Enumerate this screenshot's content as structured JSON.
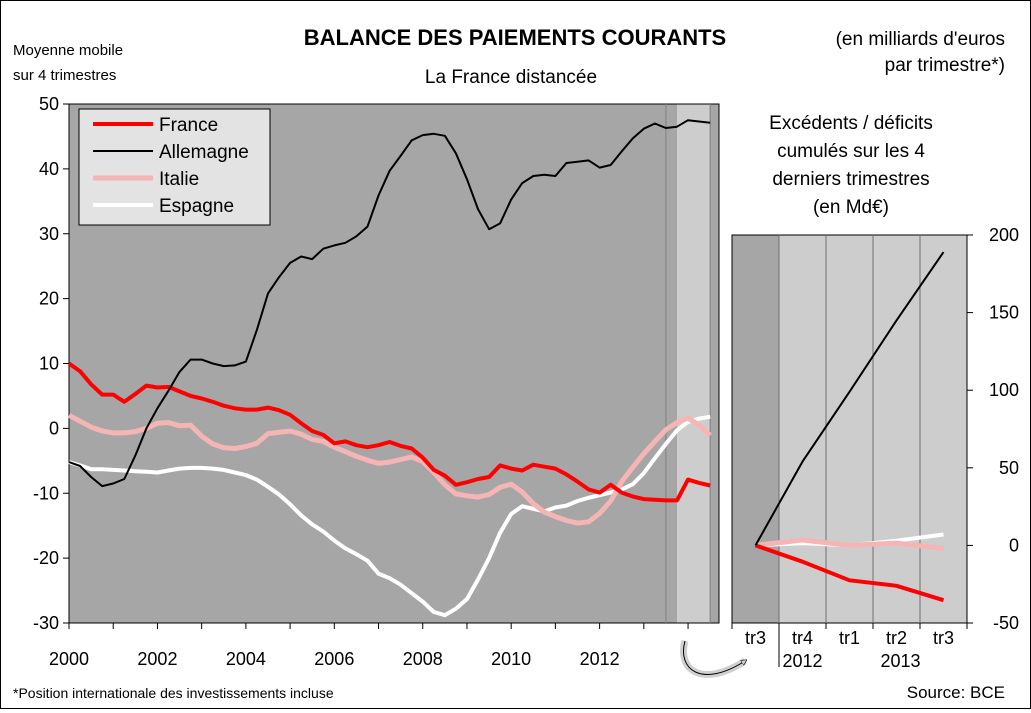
{
  "title": "BALANCE DES PAIEMENTS COURANTS",
  "subtitle": "La France distancée",
  "unit_note": [
    "(en milliards d'euros",
    "par trimestre*)"
  ],
  "left_axis_note": [
    "Moyenne mobile",
    "sur 4 trimestres"
  ],
  "footnote": "*Position internationale des investissements incluse",
  "source": "Source: BCE",
  "colors": {
    "plot_bg": "#a6a6a6",
    "highlight_bg": "#cdcdcd",
    "France": "#ff0000",
    "Allemagne": "#000000",
    "Italie": "#f5b5b5",
    "Espagne": "#ffffff"
  },
  "chart_data": [
    {
      "type": "line",
      "title": "",
      "ylabel": "Moyenne mobile sur 4 trimestres",
      "xlim": [
        2000,
        2014.7
      ],
      "ylim": [
        -30,
        50
      ],
      "yticks": [
        -30,
        -20,
        -10,
        0,
        10,
        20,
        30,
        40,
        50
      ],
      "xticks": [
        2000,
        2002,
        2004,
        2006,
        2008,
        2010,
        2012
      ],
      "grid": false,
      "legend": "top-left",
      "highlight_range": [
        2013.75,
        2014.5
      ],
      "series": [
        {
          "name": "France",
          "x": [
            2000.0,
            2000.25,
            2000.5,
            2000.75,
            2001.0,
            2001.25,
            2001.5,
            2001.75,
            2002.0,
            2002.25,
            2002.5,
            2002.75,
            2003.0,
            2003.25,
            2003.5,
            2003.75,
            2004.0,
            2004.25,
            2004.5,
            2004.75,
            2005.0,
            2005.25,
            2005.5,
            2005.75,
            2006.0,
            2006.25,
            2006.5,
            2006.75,
            2007.0,
            2007.25,
            2007.5,
            2007.75,
            2008.0,
            2008.25,
            2008.5,
            2008.75,
            2009.0,
            2009.25,
            2009.5,
            2009.75,
            2010.0,
            2010.25,
            2010.5,
            2010.75,
            2011.0,
            2011.25,
            2011.5,
            2011.75,
            2012.0,
            2012.25,
            2012.5,
            2012.75,
            2013.0,
            2013.25,
            2013.5,
            2013.75,
            2014.0,
            2014.25,
            2014.5
          ],
          "values": [
            10,
            8.8,
            6.8,
            5.2,
            5.2,
            4.1,
            5.3,
            6.6,
            6.3,
            6.4,
            5.7,
            5.0,
            4.6,
            4.1,
            3.5,
            3.1,
            2.9,
            2.9,
            3.2,
            2.8,
            2.1,
            0.8,
            -0.4,
            -1.0,
            -2.3,
            -2.0,
            -2.6,
            -2.9,
            -2.6,
            -2.1,
            -2.7,
            -3.1,
            -4.5,
            -6.4,
            -7.3,
            -8.7,
            -8.3,
            -7.8,
            -7.5,
            -5.7,
            -6.2,
            -6.5,
            -5.6,
            -5.9,
            -6.2,
            -7.1,
            -8.2,
            -9.4,
            -9.9,
            -8.7,
            -9.9,
            -10.5,
            -10.9,
            -11.0,
            -11.1,
            -11.1,
            -7.9,
            -8.4,
            -8.8
          ]
        },
        {
          "name": "Allemagne",
          "x": [
            2000.0,
            2000.25,
            2000.5,
            2000.75,
            2001.0,
            2001.25,
            2001.5,
            2001.75,
            2002.0,
            2002.25,
            2002.5,
            2002.75,
            2003.0,
            2003.25,
            2003.5,
            2003.75,
            2004.0,
            2004.25,
            2004.5,
            2004.75,
            2005.0,
            2005.25,
            2005.5,
            2005.75,
            2006.0,
            2006.25,
            2006.5,
            2006.75,
            2007.0,
            2007.25,
            2007.5,
            2007.75,
            2008.0,
            2008.25,
            2008.5,
            2008.75,
            2009.0,
            2009.25,
            2009.5,
            2009.75,
            2010.0,
            2010.25,
            2010.5,
            2010.75,
            2011.0,
            2011.25,
            2011.5,
            2011.75,
            2012.0,
            2012.25,
            2012.5,
            2012.75,
            2013.0,
            2013.25,
            2013.5,
            2013.75,
            2014.0,
            2014.25,
            2014.5
          ],
          "values": [
            -5.2,
            -5.8,
            -7.5,
            -8.9,
            -8.5,
            -7.8,
            -4.2,
            0.0,
            3.1,
            5.8,
            8.7,
            10.6,
            10.6,
            10.0,
            9.6,
            9.7,
            10.3,
            15.2,
            20.8,
            23.3,
            25.5,
            26.5,
            26.1,
            27.7,
            28.2,
            28.6,
            29.6,
            31.1,
            35.9,
            39.7,
            42.0,
            44.4,
            45.2,
            45.4,
            45.1,
            42.4,
            38.4,
            33.8,
            30.7,
            31.6,
            35.3,
            37.8,
            38.9,
            39.1,
            38.9,
            40.9,
            41.1,
            41.3,
            40.2,
            40.6,
            42.7,
            44.7,
            46.2,
            47.0,
            46.3,
            46.5,
            47.5,
            47.3,
            47.1
          ]
        },
        {
          "name": "Italie",
          "x": [
            2000.0,
            2000.25,
            2000.5,
            2000.75,
            2001.0,
            2001.25,
            2001.5,
            2001.75,
            2002.0,
            2002.25,
            2002.5,
            2002.75,
            2003.0,
            2003.25,
            2003.5,
            2003.75,
            2004.0,
            2004.25,
            2004.5,
            2004.75,
            2005.0,
            2005.25,
            2005.5,
            2005.75,
            2006.0,
            2006.25,
            2006.5,
            2006.75,
            2007.0,
            2007.25,
            2007.5,
            2007.75,
            2008.0,
            2008.25,
            2008.5,
            2008.75,
            2009.0,
            2009.25,
            2009.5,
            2009.75,
            2010.0,
            2010.25,
            2010.5,
            2010.75,
            2011.0,
            2011.25,
            2011.5,
            2011.75,
            2012.0,
            2012.25,
            2012.5,
            2012.75,
            2013.0,
            2013.25,
            2013.5,
            2013.75,
            2014.0,
            2014.25,
            2014.5
          ],
          "values": [
            2.0,
            1.1,
            0.2,
            -0.4,
            -0.7,
            -0.7,
            -0.5,
            0.0,
            0.8,
            0.9,
            0.4,
            0.5,
            -1.2,
            -2.4,
            -3.0,
            -3.1,
            -2.8,
            -2.3,
            -0.8,
            -0.6,
            -0.4,
            -0.9,
            -1.7,
            -2.0,
            -2.9,
            -3.6,
            -4.3,
            -4.9,
            -5.4,
            -5.2,
            -4.8,
            -4.4,
            -5.1,
            -6.8,
            -8.7,
            -10.1,
            -10.4,
            -10.6,
            -10.2,
            -9.1,
            -8.6,
            -9.8,
            -11.6,
            -12.9,
            -13.6,
            -14.2,
            -14.6,
            -14.4,
            -13.1,
            -11.2,
            -8.2,
            -6.0,
            -3.9,
            -2.0,
            -0.2,
            0.9,
            1.6,
            0.5,
            -1.1
          ]
        },
        {
          "name": "Espagne",
          "x": [
            2000.0,
            2000.25,
            2000.5,
            2000.75,
            2001.0,
            2001.25,
            2001.5,
            2001.75,
            2002.0,
            2002.25,
            2002.5,
            2002.75,
            2003.0,
            2003.25,
            2003.5,
            2003.75,
            2004.0,
            2004.25,
            2004.5,
            2004.75,
            2005.0,
            2005.25,
            2005.5,
            2005.75,
            2006.0,
            2006.25,
            2006.5,
            2006.75,
            2007.0,
            2007.25,
            2007.5,
            2007.75,
            2008.0,
            2008.25,
            2008.5,
            2008.75,
            2009.0,
            2009.25,
            2009.5,
            2009.75,
            2010.0,
            2010.25,
            2010.5,
            2010.75,
            2011.0,
            2011.25,
            2011.5,
            2011.75,
            2012.0,
            2012.25,
            2012.5,
            2012.75,
            2013.0,
            2013.25,
            2013.5,
            2013.75,
            2014.0,
            2014.25,
            2014.5
          ],
          "values": [
            -5.2,
            -5.7,
            -6.3,
            -6.3,
            -6.4,
            -6.5,
            -6.6,
            -6.7,
            -6.8,
            -6.5,
            -6.2,
            -6.1,
            -6.1,
            -6.2,
            -6.4,
            -6.8,
            -7.2,
            -7.9,
            -9.0,
            -10.2,
            -11.7,
            -13.4,
            -14.8,
            -15.9,
            -17.3,
            -18.5,
            -19.4,
            -20.4,
            -22.4,
            -23.1,
            -24.1,
            -25.4,
            -26.7,
            -28.3,
            -28.8,
            -27.8,
            -26.3,
            -23.3,
            -20.0,
            -16.1,
            -13.2,
            -12.0,
            -12.4,
            -12.8,
            -12.2,
            -11.9,
            -11.2,
            -10.7,
            -10.3,
            -9.9,
            -9.4,
            -8.6,
            -6.9,
            -4.6,
            -2.4,
            -0.3,
            1.0,
            1.5,
            1.8
          ]
        }
      ]
    },
    {
      "type": "line",
      "title": "Excédents / déficits cumulés sur les 4 derniers trimestres (en Md€)",
      "title_lines": [
        "Excédents / déficits",
        "cumulés sur les 4",
        "derniers trimestres",
        "(en Md€)"
      ],
      "categories": [
        "tr3",
        "tr4",
        "tr1",
        "tr2",
        "tr3"
      ],
      "year_labels": [
        "2012",
        "2013"
      ],
      "ylim": [
        -50,
        200
      ],
      "yticks": [
        -50,
        0,
        50,
        100,
        150,
        200
      ],
      "y_axis_side": "right",
      "legend": "none",
      "series": [
        {
          "name": "France",
          "values": [
            0,
            -10.5,
            -22.5,
            -26,
            -35.3
          ]
        },
        {
          "name": "Allemagne",
          "values": [
            0,
            54,
            99,
            145,
            189
          ]
        },
        {
          "name": "Italie",
          "values": [
            0,
            3.5,
            0,
            1.5,
            -2
          ]
        },
        {
          "name": "Espagne",
          "values": [
            0,
            1.5,
            0,
            3,
            7
          ]
        }
      ]
    }
  ]
}
